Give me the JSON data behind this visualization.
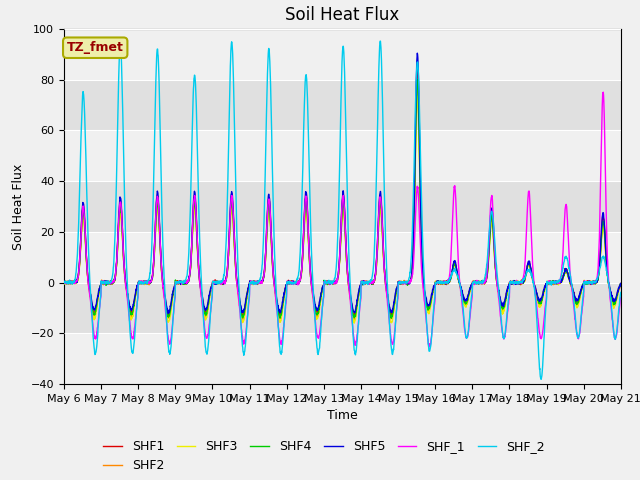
{
  "title": "Soil Heat Flux",
  "xlabel": "Time",
  "ylabel": "Soil Heat Flux",
  "ylim": [
    -40,
    100
  ],
  "xlim": [
    0,
    15
  ],
  "x_tick_labels": [
    "May 6",
    "May 7",
    "May 8",
    "May 9",
    "May 10",
    "May 11",
    "May 12",
    "May 13",
    "May 14",
    "May 15",
    "May 16",
    "May 17",
    "May 18",
    "May 19",
    "May 20",
    "May 21"
  ],
  "series_colors": {
    "SHF1": "#dd0000",
    "SHF2": "#ff8800",
    "SHF3": "#eeee00",
    "SHF4": "#00cc00",
    "SHF5": "#0000dd",
    "SHF_1": "#ff00ff",
    "SHF_2": "#00ccee"
  },
  "annotation_text": "TZ_fmet",
  "annotation_bg": "#eeeeaa",
  "annotation_border": "#aaaa00",
  "annotation_text_color": "#990000",
  "bg_color": "#f0f0f0",
  "band_colors": [
    "#f0f0f0",
    "#e0e0e0"
  ],
  "title_fontsize": 12,
  "axis_label_fontsize": 9,
  "tick_fontsize": 8,
  "legend_fontsize": 9
}
